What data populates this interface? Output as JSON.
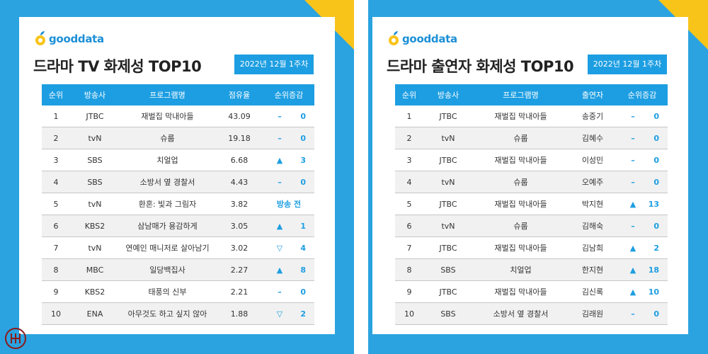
{
  "logo_text": "gooddata",
  "left": {
    "title": "드라마 TV 화제성 TOP10",
    "week": "2022년 12월 1주차",
    "headers": [
      "순위",
      "방송사",
      "프로그램명",
      "점유율",
      "순위증감"
    ],
    "rows": [
      {
        "rank": "1",
        "network": "JTBC",
        "program": "재벌집 막내아들",
        "value": "43.09",
        "sym": "–",
        "change": "0"
      },
      {
        "rank": "2",
        "network": "tvN",
        "program": "슈룹",
        "value": "19.18",
        "sym": "–",
        "change": "0"
      },
      {
        "rank": "3",
        "network": "SBS",
        "program": "치얼업",
        "value": "6.68",
        "sym": "▲",
        "change": "3"
      },
      {
        "rank": "4",
        "network": "SBS",
        "program": "소방서 옆 경찰서",
        "value": "4.43",
        "sym": "–",
        "change": "0"
      },
      {
        "rank": "5",
        "network": "tvN",
        "program": "환혼: 빛과 그림자",
        "value": "3.82",
        "sym": "",
        "change": "방송 전"
      },
      {
        "rank": "6",
        "network": "KBS2",
        "program": "삼남매가 용감하게",
        "value": "3.05",
        "sym": "▲",
        "change": "1"
      },
      {
        "rank": "7",
        "network": "tvN",
        "program": "연예인 매니저로 살아남기",
        "value": "3.02",
        "sym": "▽",
        "change": "4"
      },
      {
        "rank": "8",
        "network": "MBC",
        "program": "일당백집사",
        "value": "2.27",
        "sym": "▲",
        "change": "8"
      },
      {
        "rank": "9",
        "network": "KBS2",
        "program": "태풍의 신부",
        "value": "2.21",
        "sym": "–",
        "change": "0"
      },
      {
        "rank": "10",
        "network": "ENA",
        "program": "아무것도 하고 싶지 않아",
        "value": "1.88",
        "sym": "▽",
        "change": "2"
      }
    ]
  },
  "right": {
    "title": "드라마 출연자 화제성 TOP10",
    "week": "2022년 12월 1주차",
    "headers": [
      "순위",
      "방송사",
      "프로그램명",
      "출연자",
      "순위증감"
    ],
    "rows": [
      {
        "rank": "1",
        "network": "JTBC",
        "program": "재벌집 막내아들",
        "value": "송중기",
        "sym": "–",
        "change": "0"
      },
      {
        "rank": "2",
        "network": "tvN",
        "program": "슈룹",
        "value": "김혜수",
        "sym": "–",
        "change": "0"
      },
      {
        "rank": "3",
        "network": "JTBC",
        "program": "재벌집 막내아들",
        "value": "이성민",
        "sym": "–",
        "change": "0"
      },
      {
        "rank": "4",
        "network": "tvN",
        "program": "슈룹",
        "value": "오예주",
        "sym": "–",
        "change": "0"
      },
      {
        "rank": "5",
        "network": "JTBC",
        "program": "재벌집 막내아들",
        "value": "박지현",
        "sym": "▲",
        "change": "13"
      },
      {
        "rank": "6",
        "network": "tvN",
        "program": "슈룹",
        "value": "김해숙",
        "sym": "–",
        "change": "0"
      },
      {
        "rank": "7",
        "network": "JTBC",
        "program": "재벌집 막내아들",
        "value": "김남희",
        "sym": "▲",
        "change": "2"
      },
      {
        "rank": "8",
        "network": "SBS",
        "program": "치얼업",
        "value": "한지현",
        "sym": "▲",
        "change": "18"
      },
      {
        "rank": "9",
        "network": "JTBC",
        "program": "재벌집 막내아들",
        "value": "김신록",
        "sym": "▲",
        "change": "10"
      },
      {
        "rank": "10",
        "network": "SBS",
        "program": "소방서 옆 경찰서",
        "value": "김래원",
        "sym": "–",
        "change": "0"
      }
    ]
  },
  "colors": {
    "brand_blue": "#1d9ee2",
    "panel_blue": "#2aa3e0",
    "accent_yellow": "#f9c41a"
  }
}
